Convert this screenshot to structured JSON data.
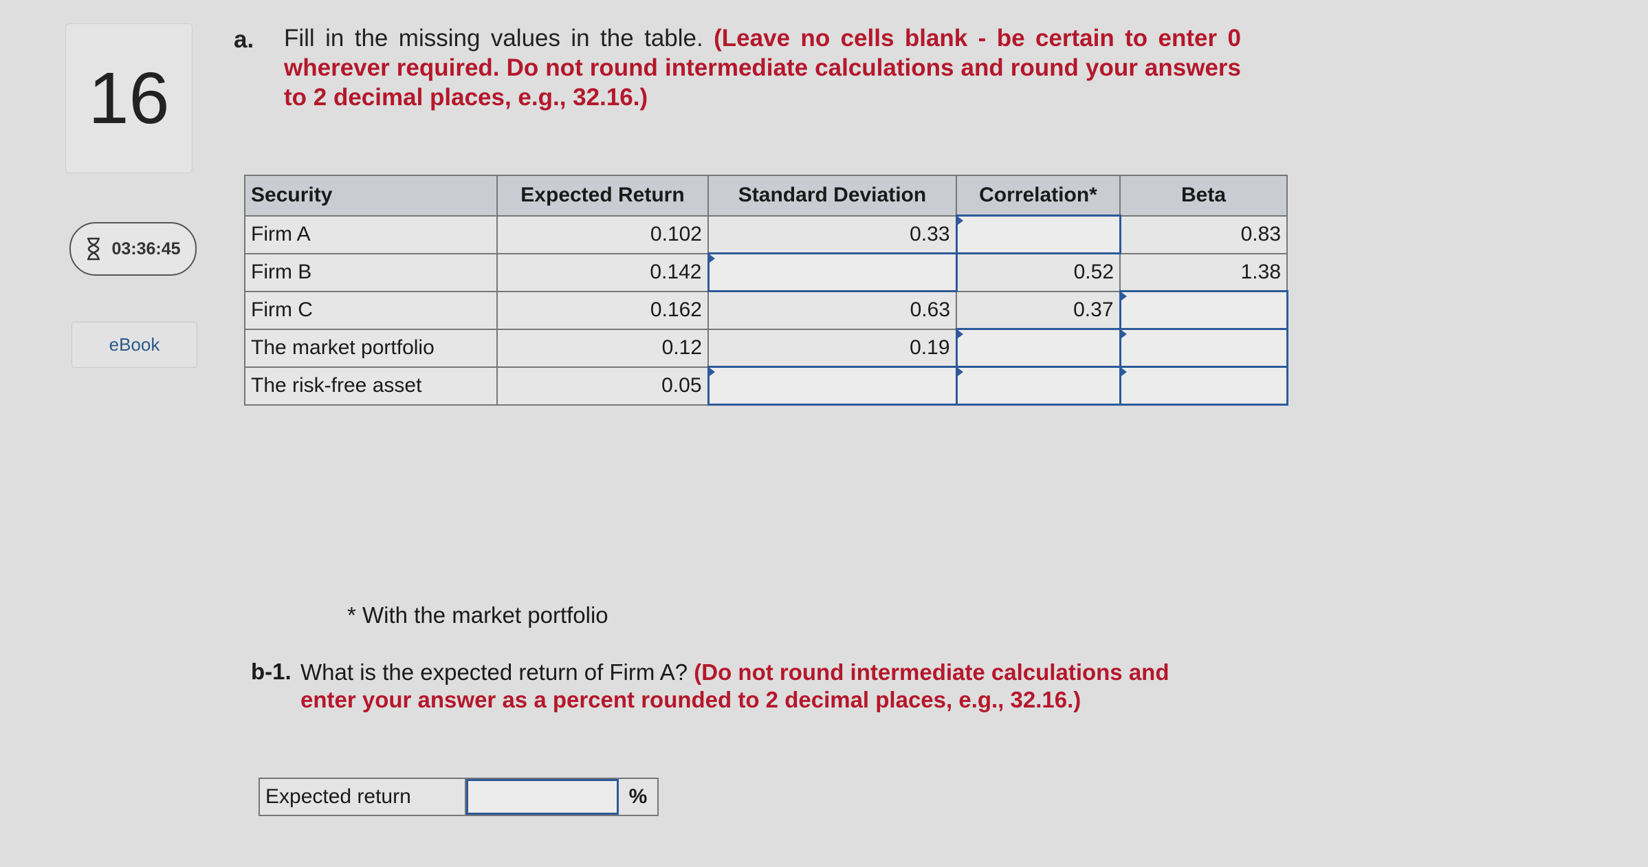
{
  "sidebar": {
    "question_number": "16",
    "timer": "03:36:45",
    "timer_icon": "hourglass-icon",
    "ebook_label": "eBook"
  },
  "part_a": {
    "label": "a.",
    "text": "Fill in the missing values in the table.",
    "instruction": "(Leave no cells blank - be certain to enter 0 wherever required. Do not round intermediate calculations and round your answers to 2 decimal places, e.g., 32.16.)"
  },
  "table": {
    "headers": [
      "Security",
      "Expected Return",
      "Standard Deviation",
      "Correlation*",
      "Beta"
    ],
    "rows": [
      {
        "security": "Firm A",
        "expected_return": "0.102",
        "std_dev": "0.33",
        "correlation": "",
        "beta": "0.83"
      },
      {
        "security": "Firm B",
        "expected_return": "0.142",
        "std_dev": "",
        "correlation": "0.52",
        "beta": "1.38"
      },
      {
        "security": "Firm C",
        "expected_return": "0.162",
        "std_dev": "0.63",
        "correlation": "0.37",
        "beta": ""
      },
      {
        "security": "The market portfolio",
        "expected_return": "0.12",
        "std_dev": "0.19",
        "correlation": "",
        "beta": ""
      },
      {
        "security": "The risk-free asset",
        "expected_return": "0.05",
        "std_dev": "",
        "correlation": "",
        "beta": ""
      }
    ]
  },
  "footnote": "* With the market portfolio",
  "part_b1": {
    "label": "b-1.",
    "text": "What is the expected return of Firm A?",
    "instruction": "(Do not round intermediate calculations and enter your answer as a percent rounded to 2 decimal places, e.g., 32.16.)",
    "answer_label": "Expected return",
    "answer_value": "",
    "unit": "%"
  },
  "colors": {
    "instruction_red": "#b5172b",
    "input_border": "#2c5a9a"
  }
}
